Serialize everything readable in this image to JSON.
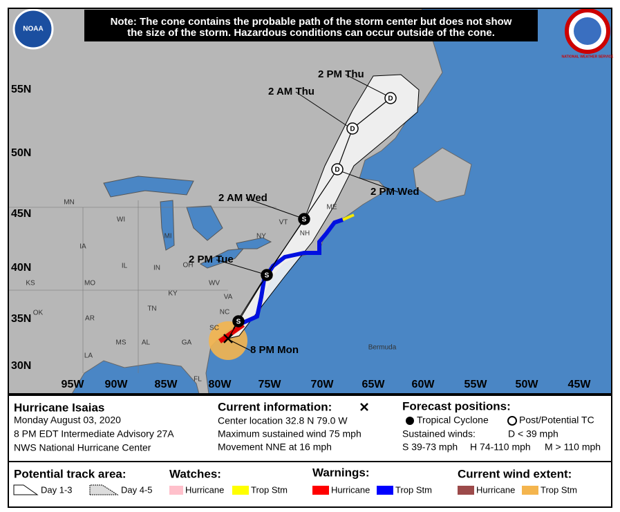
{
  "note": [
    "Note: The cone contains the probable path of the storm center but does not show",
    "the size of the storm. Hazardous conditions can occur outside of the cone."
  ],
  "logos": {
    "left": "NOAA",
    "right": "NATIONAL WEATHER SERVICE"
  },
  "map": {
    "lat_labels": [
      "55N",
      "50N",
      "45N",
      "40N",
      "35N",
      "30N"
    ],
    "lon_labels": [
      "95W",
      "90W",
      "85W",
      "80W",
      "75W",
      "70W",
      "65W",
      "60W",
      "55W",
      "50W",
      "45W"
    ],
    "state_labels": [
      "MN",
      "WI",
      "MI",
      "IA",
      "IL",
      "IN",
      "OH",
      "KS",
      "MO",
      "KY",
      "WV",
      "TN",
      "OK",
      "AR",
      "NC",
      "SC",
      "MS",
      "AL",
      "GA",
      "LA",
      "FL",
      "NY",
      "VT",
      "NH",
      "ME",
      "VA"
    ],
    "place_labels": [
      "Bermuda"
    ],
    "forecast_times": [
      "8 PM Mon",
      "2 PM Tue",
      "2 AM Wed",
      "2 PM Wed",
      "2 AM Thu",
      "2 PM Thu"
    ],
    "position_markers": [
      "S",
      "S",
      "S",
      "D",
      "D",
      "D"
    ]
  },
  "info": {
    "storm_name": "Hurricane Isaias",
    "date": "Monday August 03, 2020",
    "advisory": "8 PM EDT Intermediate Advisory 27A",
    "center": "NWS National Hurricane Center"
  },
  "current": {
    "title": "Current information:",
    "lines": [
      "Center location 32.8 N 79.0 W",
      "Maximum sustained wind 75 mph",
      "Movement NNE at 16 mph"
    ]
  },
  "forecast": {
    "title": "Forecast positions:",
    "tropical_cyclone": "Tropical Cyclone",
    "post_tc": "Post/Potential TC",
    "sustained_winds": "Sustained winds:",
    "categories": [
      "D < 39 mph",
      "S 39-73 mph",
      "H 74-110 mph",
      "M > 110 mph"
    ]
  },
  "legend": {
    "track_area": {
      "title": "Potential track area:",
      "items": [
        "Day 1-3",
        "Day 4-5"
      ]
    },
    "watches": {
      "title": "Watches:",
      "items": [
        "Hurricane",
        "Trop Stm"
      ]
    },
    "warnings": {
      "title": "Warnings:",
      "items": [
        "Hurricane",
        "Trop Stm"
      ]
    },
    "wind_extent": {
      "title": "Current wind extent:",
      "items": [
        "Hurricane",
        "Trop Stm"
      ]
    }
  }
}
